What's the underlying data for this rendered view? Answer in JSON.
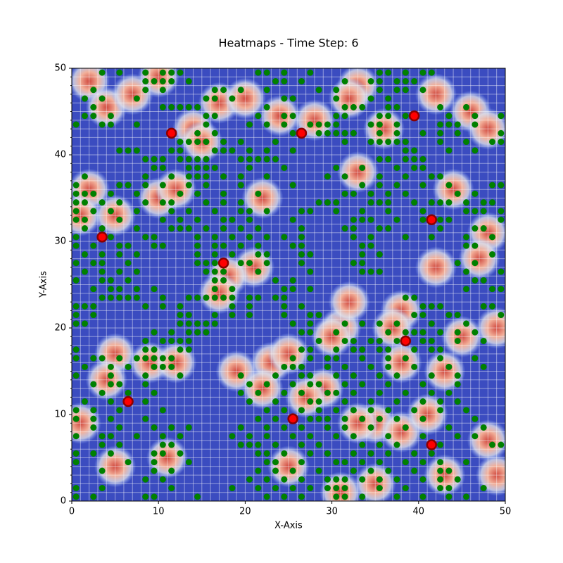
{
  "chart_data": {
    "type": "heatmap-scatter",
    "title": "Heatmaps - Time Step: 6",
    "x_label": "X-Axis",
    "y_label": "Y-Axis",
    "xlim": [
      0,
      50
    ],
    "ylim": [
      0,
      50
    ],
    "xticks": [
      0,
      10,
      20,
      30,
      40,
      50
    ],
    "yticks": [
      0,
      10,
      20,
      30,
      40,
      50
    ],
    "grid": true,
    "background_color": "#3b4cc0",
    "hot_color": "#d0473d",
    "hot_spots": {
      "x": [
        2,
        4,
        17,
        20,
        14,
        15,
        24,
        28,
        33,
        32,
        33,
        36,
        42,
        46,
        48,
        10,
        7,
        2,
        1,
        5,
        22,
        21,
        18,
        17,
        10,
        12,
        44,
        48,
        47,
        42,
        38,
        31,
        32,
        30,
        37,
        38,
        49,
        45,
        5,
        4,
        9,
        12,
        19,
        23,
        22,
        29,
        25,
        27,
        35,
        33,
        38,
        41,
        43,
        48,
        49,
        43,
        31,
        35,
        5,
        11,
        1,
        25
      ],
      "y": [
        48.5,
        45.5,
        46,
        46.5,
        43,
        41.5,
        44.5,
        44,
        48,
        46.5,
        38,
        43,
        47,
        45,
        43,
        49,
        47,
        36,
        33,
        33,
        35,
        27,
        26,
        24,
        35,
        36,
        36,
        31,
        28,
        27,
        22,
        20,
        23,
        19,
        20,
        16,
        20,
        19,
        17,
        14,
        16,
        16,
        15,
        16,
        13,
        13,
        17,
        12,
        9,
        9,
        8,
        10,
        3,
        7,
        3,
        15,
        1,
        2,
        4,
        5,
        9,
        4
      ]
    },
    "agents": {
      "name": "agents",
      "color": "#ff0000",
      "x": [
        11.5,
        26.5,
        39.5,
        41.5,
        3.5,
        17.5,
        38.5,
        6.5,
        25.5,
        41.5
      ],
      "y": [
        42.5,
        42.5,
        44.5,
        32.5,
        30.5,
        27.5,
        18.5,
        11.5,
        9.5,
        6.5
      ]
    },
    "green_color": "#008000",
    "green_rows": [
      {
        "y": 49.5,
        "x": [
          3.5,
          5.5,
          8.5,
          10.5,
          11.5,
          12.5,
          21.5,
          22.5,
          24.5,
          27.5,
          35.5,
          36.5,
          38.5,
          40.5,
          41.5
        ]
      },
      {
        "y": 48.5,
        "x": [
          8.5,
          9.5,
          10.5,
          11.5,
          13.5,
          23.5,
          24.5,
          26.5,
          31.5,
          34.5,
          35.5,
          37.5,
          38.5,
          39.5
        ]
      },
      {
        "y": 47.5,
        "x": [
          2.5,
          8.5,
          10.5,
          16.5,
          17.5,
          19.5,
          22.5,
          28.5,
          30.5,
          35.5,
          37.5,
          38.5,
          40.5
        ]
      },
      {
        "y": 46.5,
        "x": [
          1.5,
          3.5,
          7.5,
          15.5,
          16.5,
          18.5,
          24.5,
          25.5,
          30.5,
          34.5,
          36.5
        ]
      },
      {
        "y": 45.5,
        "x": [
          2.5,
          10.5,
          11.5,
          12.5,
          13.5,
          14.5,
          22.5,
          31.5,
          32.5,
          33.5,
          36.5,
          37.5,
          42.5,
          45.5
        ]
      },
      {
        "y": 44.5,
        "x": [
          1.5,
          2.5,
          4.5,
          15.5,
          16.5,
          21.5,
          24.5,
          25.5,
          30.5,
          31.5,
          35.5,
          36.5,
          38.5,
          43.5,
          46.5,
          49.5
        ]
      },
      {
        "y": 43.5,
        "x": [
          0.5,
          3.5,
          4.5,
          7.5,
          15.5,
          20.5,
          22.5,
          24.5,
          27.5,
          28.5,
          29.5,
          30.5,
          34.5,
          35.5,
          37.5,
          42.5,
          43.5,
          44.5,
          46.5
        ]
      },
      {
        "y": 42.5,
        "x": [
          14.5,
          16.5,
          25.5,
          28.5,
          29.5,
          30.5,
          31.5,
          32.5,
          35.5,
          37.5,
          40.5,
          42.5,
          44.5,
          49.5
        ]
      },
      {
        "y": 41.5,
        "x": [
          12.5,
          13.5,
          14.5,
          15.5,
          17.5,
          19.5,
          23.5,
          31.5,
          34.5,
          35.5,
          36.5,
          37.5,
          38.5,
          42.5,
          45.5,
          48.5,
          49.5
        ]
      },
      {
        "y": 40.5,
        "x": [
          5.5,
          6.5,
          7.5,
          11.5,
          12.5,
          16.5,
          17.5,
          18.5,
          20.5,
          22.5,
          25.5,
          38.5,
          39.5,
          43.5,
          46.5
        ]
      },
      {
        "y": 39.5,
        "x": [
          8.5,
          9.5,
          10.5,
          12.5,
          13.5,
          14.5,
          15.5,
          19.5,
          20.5,
          21.5,
          22.5,
          23.5,
          35.5,
          36.5,
          38.5,
          39.5,
          40.5
        ]
      },
      {
        "y": 38.5,
        "x": [
          9.5,
          10.5,
          13.5,
          14.5,
          15.5,
          16.5,
          20.5,
          24.5,
          30.5,
          33.5,
          37.5,
          39.5,
          40.5
        ]
      },
      {
        "y": 37.5,
        "x": [
          1.5,
          8.5,
          11.5,
          13.5,
          14.5,
          15.5,
          17.5,
          19.5,
          22.5,
          29.5,
          31.5,
          35.5,
          38.5,
          41.5,
          42.5
        ]
      },
      {
        "y": 36.5,
        "x": [
          0.5,
          5.5,
          6.5,
          8.5,
          10.5,
          13.5,
          15.5,
          19.5,
          25.5,
          33.5,
          35.5,
          37.5,
          40.5,
          43.5,
          48.5,
          49.5
        ]
      },
      {
        "y": 35.5,
        "x": [
          0.5,
          1.5,
          2.5,
          4.5,
          7.5,
          12.5,
          14.5,
          17.5,
          21.5,
          31.5,
          32.5,
          34.5,
          36.5,
          38.5,
          44.5,
          46.5
        ]
      },
      {
        "y": 34.5,
        "x": [
          0.5,
          1.5,
          3.5,
          5.5,
          8.5,
          10.5,
          11.5,
          15.5,
          17.5,
          19.5,
          28.5,
          29.5,
          30.5,
          34.5,
          35.5,
          36.5,
          39.5,
          41.5,
          42.5,
          43.5,
          45.5,
          47.5,
          48.5
        ]
      },
      {
        "y": 33.5,
        "x": [
          0.5,
          2.5,
          4.5,
          7.5,
          11.5,
          13.5,
          16.5,
          19.5,
          20.5,
          22.5,
          26.5,
          27.5,
          30.5,
          33.5,
          36.5,
          40.5,
          45.5,
          46.5,
          47.5,
          49.5
        ]
      },
      {
        "y": 32.5,
        "x": [
          0.5,
          1.5,
          5.5,
          10.5,
          12.5,
          14.5,
          17.5,
          18.5,
          20.5,
          25.5,
          32.5,
          33.5,
          34.5,
          37.5,
          40.5,
          42.5,
          43.5,
          49.5
        ]
      },
      {
        "y": 31.5,
        "x": [
          1.5,
          3.5,
          7.5,
          11.5,
          12.5,
          13.5,
          15.5,
          17.5,
          19.5,
          21.5,
          26.5,
          31.5,
          32.5,
          35.5,
          36.5,
          42.5,
          46.5,
          47.5
        ]
      },
      {
        "y": 30.5,
        "x": [
          0.5,
          4.5,
          8.5,
          9.5,
          14.5,
          16.5,
          18.5,
          20.5,
          22.5,
          24.5,
          26.5,
          32.5,
          34.5,
          38.5,
          41.5,
          45.5,
          48.5
        ]
      },
      {
        "y": 29.5,
        "x": [
          0.5,
          2.5,
          5.5,
          6.5,
          9.5,
          10.5,
          14.5,
          16.5,
          17.5,
          19.5,
          21.5,
          25.5,
          26.5,
          33.5,
          34.5,
          45.5,
          46.5
        ]
      },
      {
        "y": 28.5,
        "x": [
          1.5,
          3.5,
          5.5,
          7.5,
          14.5,
          16.5,
          18.5,
          21.5,
          22.5,
          26.5,
          27.5,
          33.5,
          35.5,
          48.5
        ]
      },
      {
        "y": 27.5,
        "x": [
          0.5,
          2.5,
          3.5,
          6.5,
          14.5,
          15.5,
          16.5,
          19.5,
          20.5,
          22.5,
          26.5,
          32.5,
          33.5,
          44.5,
          46.5
        ]
      },
      {
        "y": 26.5,
        "x": [
          1.5,
          3.5,
          5.5,
          7.5,
          15.5,
          16.5,
          17.5,
          21.5,
          27.5,
          33.5,
          34.5,
          35.5,
          45.5,
          49.5
        ]
      },
      {
        "y": 25.5,
        "x": [
          0.5,
          3.5,
          4.5,
          6.5,
          16.5,
          17.5,
          23.5,
          25.5,
          46.5,
          47.5
        ]
      },
      {
        "y": 24.5,
        "x": [
          2.5,
          4.5,
          5.5,
          7.5,
          9.5,
          16.5,
          18.5,
          24.5,
          25.5,
          27.5,
          45.5,
          48.5,
          49.5
        ]
      },
      {
        "y": 23.5,
        "x": [
          3.5,
          4.5,
          5.5,
          6.5,
          7.5,
          10.5,
          13.5,
          14.5,
          15.5,
          16.5,
          17.5,
          18.5,
          20.5,
          21.5,
          23.5,
          24.5,
          38.5,
          39.5
        ]
      },
      {
        "y": 22.5,
        "x": [
          0.5,
          1.5,
          2.5,
          8.5,
          10.5,
          12.5,
          18.5,
          20.5,
          24.5,
          26.5,
          40.5,
          41.5,
          42.5,
          47.5,
          48.5
        ]
      },
      {
        "y": 21.5,
        "x": [
          0.5,
          2.5,
          12.5,
          13.5,
          16.5,
          18.5,
          20.5,
          24.5,
          27.5,
          28.5,
          39.5,
          40.5,
          43.5,
          44.5,
          49.5
        ]
      },
      {
        "y": 20.5,
        "x": [
          0.5,
          1.5,
          12.5,
          13.5,
          14.5,
          15.5,
          16.5,
          25.5,
          27.5,
          31.5,
          33.5,
          35.5,
          37.5,
          41.5,
          45.5
        ]
      },
      {
        "y": 19.5,
        "x": [
          9.5,
          11.5,
          13.5,
          14.5,
          15.5,
          26.5,
          27.5,
          30.5,
          36.5,
          38.5,
          39.5,
          40.5,
          42.5,
          44.5,
          46.5
        ]
      },
      {
        "y": 18.5,
        "x": [
          8.5,
          10.5,
          11.5,
          12.5,
          13.5,
          28.5,
          31.5,
          32.5,
          34.5,
          35.5,
          37.5,
          40.5,
          41.5,
          44.5,
          47.5
        ]
      },
      {
        "y": 17.5,
        "x": [
          0.5,
          8.5,
          9.5,
          12.5,
          13.5,
          26.5,
          27.5,
          30.5,
          32.5,
          33.5,
          35.5,
          36.5,
          39.5,
          41.5,
          42.5
        ]
      },
      {
        "y": 16.5,
        "x": [
          0.5,
          2.5,
          3.5,
          5.5,
          7.5,
          8.5,
          9.5,
          10.5,
          11.5,
          25.5,
          27.5,
          29.5,
          30.5,
          33.5,
          36.5,
          38.5,
          42.5,
          46.5
        ]
      },
      {
        "y": 15.5,
        "x": [
          1.5,
          4.5,
          6.5,
          9.5,
          10.5,
          11.5,
          24.5,
          25.5,
          26.5,
          29.5,
          31.5,
          34.5,
          36.5,
          39.5,
          43.5,
          47.5
        ]
      },
      {
        "y": 14.5,
        "x": [
          0.5,
          4.5,
          8.5,
          12.5,
          19.5,
          23.5,
          26.5,
          27.5,
          30.5,
          32.5,
          35.5,
          37.5,
          41.5,
          44.5
        ]
      },
      {
        "y": 13.5,
        "x": [
          2.5,
          4.5,
          5.5,
          8.5,
          20.5,
          22.5,
          25.5,
          27.5,
          28.5,
          31.5,
          33.5,
          36.5,
          40.5,
          44.5
        ]
      },
      {
        "y": 12.5,
        "x": [
          3.5,
          6.5,
          9.5,
          19.5,
          21.5,
          24.5,
          26.5,
          29.5,
          30.5,
          32.5,
          35.5,
          38.5,
          41.5,
          43.5
        ]
      },
      {
        "y": 11.5,
        "x": [
          1.5,
          4.5,
          8.5,
          20.5,
          23.5,
          27.5,
          28.5,
          31.5,
          34.5,
          37.5,
          40.5,
          42.5,
          44.5
        ]
      },
      {
        "y": 10.5,
        "x": [
          0.5,
          2.5,
          5.5,
          10.5,
          22.5,
          24.5,
          26.5,
          28.5,
          30.5,
          32.5,
          34.5,
          36.5,
          39.5,
          42.5,
          45.5
        ]
      },
      {
        "y": 9.5,
        "x": [
          0.5,
          2.5,
          4.5,
          8.5,
          21.5,
          23.5,
          27.5,
          28.5,
          29.5,
          31.5,
          33.5,
          35.5,
          37.5,
          40.5,
          46.5
        ]
      },
      {
        "y": 8.5,
        "x": [
          2.5,
          5.5,
          9.5,
          11.5,
          13.5,
          19.5,
          22.5,
          24.5,
          26.5,
          29.5,
          31.5,
          34.5,
          38.5,
          43.5,
          47.5
        ]
      },
      {
        "y": 7.5,
        "x": [
          0.5,
          3.5,
          4.5,
          7.5,
          10.5,
          12.5,
          18.5,
          20.5,
          22.5,
          25.5,
          27.5,
          30.5,
          32.5,
          36.5,
          40.5,
          44.5,
          46.5
        ]
      },
      {
        "y": 6.5,
        "x": [
          3.5,
          5.5,
          10.5,
          11.5,
          19.5,
          20.5,
          21.5,
          23.5,
          26.5,
          28.5,
          33.5,
          35.5,
          37.5,
          42.5,
          48.5,
          49.5
        ]
      },
      {
        "y": 5.5,
        "x": [
          0.5,
          2.5,
          4.5,
          9.5,
          10.5,
          12.5,
          21.5,
          22.5,
          24.5,
          27.5,
          29.5,
          32.5,
          34.5,
          36.5,
          39.5,
          41.5
        ]
      },
      {
        "y": 4.5,
        "x": [
          0.5,
          6.5,
          9.5,
          13.5,
          22.5,
          23.5,
          26.5,
          30.5,
          31.5,
          33.5,
          35.5,
          38.5,
          40.5,
          42.5,
          45.5
        ]
      },
      {
        "y": 3.5,
        "x": [
          3.5,
          9.5,
          11.5,
          21.5,
          23.5,
          25.5,
          28.5,
          32.5,
          34.5,
          36.5,
          39.5,
          42.5,
          43.5
        ]
      },
      {
        "y": 2.5,
        "x": [
          8.5,
          10.5,
          20.5,
          22.5,
          24.5,
          26.5,
          29.5,
          30.5,
          31.5,
          33.5,
          35.5,
          37.5,
          40.5,
          42.5,
          44.5
        ]
      },
      {
        "y": 1.5,
        "x": [
          0.5,
          3.5,
          11.5,
          18.5,
          21.5,
          23.5,
          25.5,
          27.5,
          29.5,
          30.5,
          31.5,
          35.5,
          38.5,
          42.5,
          43.5,
          47.5
        ]
      },
      {
        "y": 0.5,
        "x": [
          0.5,
          2.5,
          8.5,
          9.5,
          14.5,
          22.5,
          24.5,
          26.5,
          30.5,
          31.5,
          33.5,
          37.5,
          40.5,
          43.5,
          45.5
        ]
      }
    ]
  }
}
